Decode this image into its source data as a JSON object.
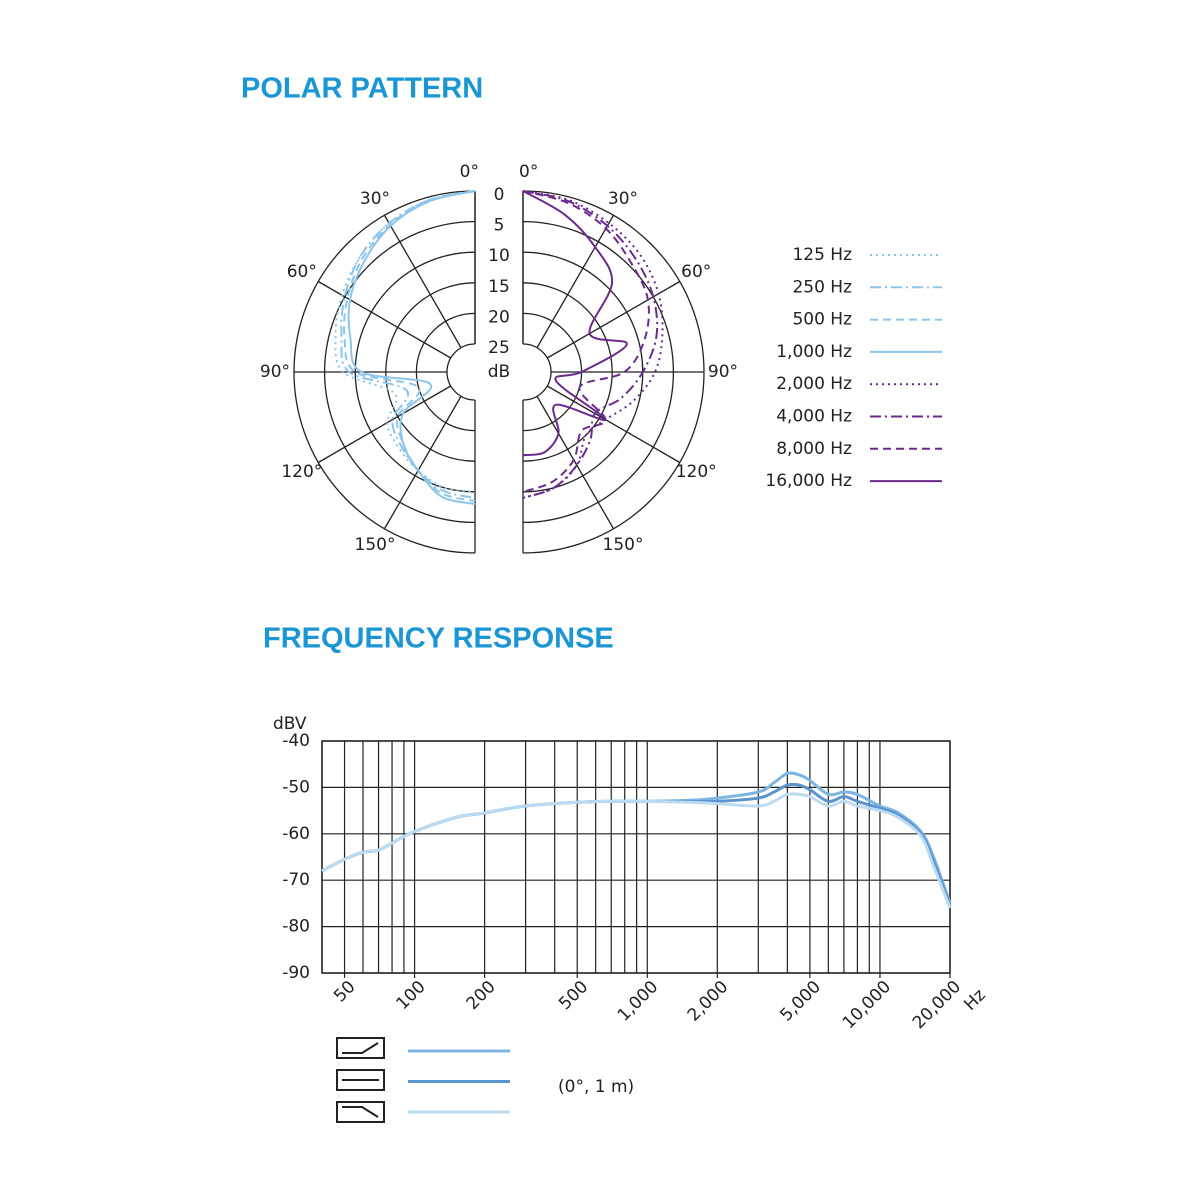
{
  "chart_data": [
    {
      "type": "polar",
      "title": "POLAR PATTERN",
      "angles": [
        0,
        15,
        30,
        45,
        60,
        75,
        90,
        105,
        120,
        135,
        150,
        165,
        180
      ],
      "angle_ticks": [
        {
          "value": 0,
          "label": "0°"
        },
        {
          "value": 30,
          "label": "30°"
        },
        {
          "value": 60,
          "label": "60°"
        },
        {
          "value": 90,
          "label": "90°"
        },
        {
          "value": 120,
          "label": "120°"
        },
        {
          "value": 150,
          "label": "150°"
        }
      ],
      "rlim": [
        0,
        25
      ],
      "rticks": [
        0,
        5,
        10,
        15,
        20,
        25
      ],
      "r_label": "dB",
      "legend": "right",
      "series": [
        {
          "name": "125 Hz",
          "color": "#8dc5ea",
          "dash": "dotted",
          "side": "left",
          "values": [
            0,
            0.5,
            1.5,
            3,
            4.5,
            6,
            8,
            16,
            13,
            12,
            11,
            10,
            10
          ]
        },
        {
          "name": "250 Hz",
          "color": "#8dc5ea",
          "dash": "dashdot",
          "side": "left",
          "values": [
            0,
            0.5,
            1.5,
            3,
            5,
            7,
            9,
            18,
            14,
            12.5,
            11,
            9.5,
            9
          ]
        },
        {
          "name": "500 Hz",
          "color": "#8dc5ea",
          "dash": "dashed",
          "side": "left",
          "values": [
            0,
            0.5,
            1.8,
            3.5,
            5.5,
            7.5,
            10,
            20,
            15,
            13,
            11,
            9,
            8.5
          ]
        },
        {
          "name": "1,000 Hz",
          "color": "#8dc5ea",
          "dash": "solid",
          "side": "left",
          "values": [
            0,
            0.7,
            2,
            4,
            6,
            8.5,
            11,
            22,
            16,
            13,
            11,
            8.5,
            8
          ]
        },
        {
          "name": "2,000 Hz",
          "color": "#6c2a8e",
          "dash": "dotted",
          "side": "right",
          "values": [
            0,
            0.5,
            1.5,
            2.5,
            4,
            6,
            8,
            11,
            14,
            15,
            12,
            10,
            9
          ]
        },
        {
          "name": "4,000 Hz",
          "color": "#6c2a8e",
          "dash": "dashdot",
          "side": "right",
          "values": [
            0,
            0.7,
            2,
            3.5,
            5,
            7,
            10,
            13,
            16,
            14,
            12,
            10,
            9
          ]
        },
        {
          "name": "8,000 Hz",
          "color": "#6c2a8e",
          "dash": "dashed",
          "side": "right",
          "values": [
            0,
            1,
            2.5,
            4.5,
            6,
            9,
            13,
            20,
            14,
            16,
            13,
            11,
            10
          ]
        },
        {
          "name": "16,000 Hz",
          "color": "#6c2a8e",
          "dash": "solid",
          "side": "right",
          "values": [
            0,
            3,
            6,
            9,
            17,
            12,
            20,
            24,
            14,
            22,
            18,
            16,
            16
          ]
        }
      ]
    },
    {
      "type": "line",
      "title": "FREQUENCY RESPONSE",
      "y_label": "dBV",
      "x_unit": "Hz",
      "note": "(0°, 1 m)",
      "xscale": "log",
      "xlim": [
        40,
        20000
      ],
      "ylim": [
        -90,
        -40
      ],
      "grid": true,
      "xticks": [
        50,
        100,
        200,
        500,
        {
          "value": 1000,
          "label": "1,000"
        },
        {
          "value": 2000,
          "label": "2,000"
        },
        {
          "value": 5000,
          "label": "5,000"
        },
        {
          "value": 10000,
          "label": "10,000"
        },
        {
          "value": 20000,
          "label": "20,000"
        }
      ],
      "xgrid": [
        40,
        50,
        60,
        70,
        80,
        90,
        100,
        200,
        300,
        400,
        500,
        600,
        700,
        800,
        900,
        1000,
        2000,
        3000,
        4000,
        5000,
        6000,
        7000,
        8000,
        9000,
        10000,
        20000
      ],
      "yticks": [
        -40,
        -50,
        -60,
        -70,
        -80,
        -90
      ],
      "x": [
        40,
        50,
        60,
        70,
        80,
        100,
        150,
        200,
        300,
        500,
        700,
        1000,
        1500,
        2000,
        3000,
        3500,
        4000,
        4500,
        5000,
        6000,
        7000,
        8000,
        10000,
        12000,
        15000,
        17000,
        20000
      ],
      "series": [
        {
          "color": "#7db5e2",
          "values": [
            -68,
            -65.5,
            -64,
            -63.5,
            -62,
            -59.5,
            -56.5,
            -55.5,
            -54,
            -53.2,
            -53,
            -53,
            -52.8,
            -52.3,
            -51,
            -49,
            -47,
            -47.3,
            -48.5,
            -51.5,
            -51,
            -51.5,
            -54,
            -55.5,
            -59.5,
            -65,
            -75
          ]
        },
        {
          "color": "#5b93cd",
          "values": [
            -68,
            -65.5,
            -64,
            -63.5,
            -62,
            -59.5,
            -56.5,
            -55.5,
            -54,
            -53.2,
            -53,
            -53,
            -53,
            -53,
            -52.3,
            -51,
            -49.5,
            -49.5,
            -50.5,
            -53,
            -52,
            -53,
            -54.5,
            -56,
            -60,
            -66,
            -75.5
          ]
        },
        {
          "color": "#bcdbf1",
          "values": [
            -68,
            -65.5,
            -64,
            -63.5,
            -62,
            -59.5,
            -56.5,
            -55.5,
            -54,
            -53.2,
            -53,
            -53,
            -53.2,
            -53.5,
            -54,
            -53,
            -51.5,
            -51.5,
            -52,
            -54,
            -53,
            -54,
            -55,
            -56.5,
            -60.5,
            -67,
            -76
          ]
        }
      ]
    }
  ]
}
